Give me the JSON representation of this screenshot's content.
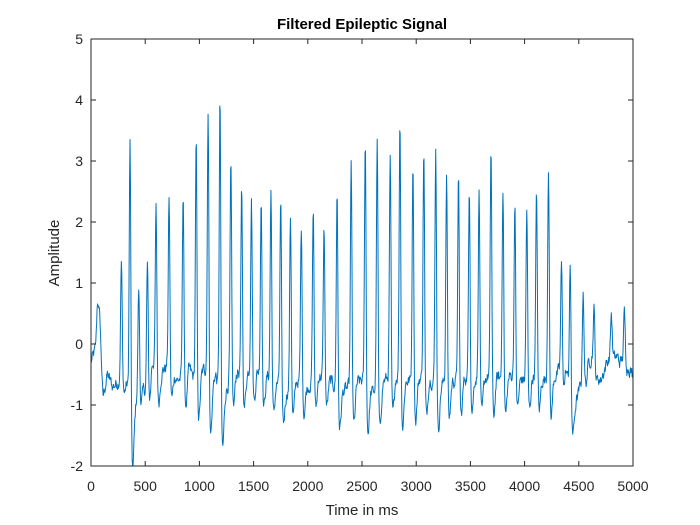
{
  "chart_data": {
    "type": "line",
    "title": "Filtered Epileptic Signal",
    "xlabel": "Time in ms",
    "ylabel": "Amplitude",
    "xlim": [
      0,
      5000
    ],
    "ylim": [
      -2,
      5
    ],
    "xticks": [
      0,
      500,
      1000,
      1500,
      2000,
      2500,
      3000,
      3500,
      4000,
      4500,
      5000
    ],
    "yticks": [
      -2,
      -1,
      0,
      1,
      2,
      3,
      4,
      5
    ],
    "grid": false,
    "legend": "none",
    "line_color": "#0072BD",
    "baseline": [
      [
        0,
        -0.3
      ],
      [
        40,
        -0.1
      ],
      [
        80,
        0.6
      ],
      [
        110,
        -0.9
      ],
      [
        150,
        -0.5
      ],
      [
        200,
        -0.7
      ],
      [
        260,
        -0.6
      ],
      [
        300,
        -0.4
      ],
      [
        350,
        -0.8
      ],
      [
        380,
        -1.35
      ],
      [
        420,
        -0.9
      ],
      [
        470,
        -0.6
      ],
      [
        520,
        -0.9
      ],
      [
        560,
        -0.2
      ],
      [
        620,
        -0.5
      ],
      [
        680,
        -0.4
      ],
      [
        720,
        -0.3
      ],
      [
        800,
        -0.6
      ],
      [
        860,
        -0.5
      ],
      [
        900,
        -0.4
      ],
      [
        960,
        -0.6
      ],
      [
        1000,
        -0.5
      ],
      [
        1060,
        -0.4
      ],
      [
        1100,
        -0.7
      ],
      [
        1150,
        -0.5
      ],
      [
        1200,
        -0.9
      ],
      [
        1260,
        -0.7
      ],
      [
        1300,
        -0.4
      ],
      [
        1400,
        -0.5
      ],
      [
        1500,
        -0.4
      ],
      [
        1600,
        -0.5
      ],
      [
        1700,
        -0.6
      ],
      [
        1800,
        -0.8
      ],
      [
        1900,
        -0.6
      ],
      [
        2000,
        -0.7
      ],
      [
        2100,
        -0.5
      ],
      [
        2200,
        -0.6
      ],
      [
        2300,
        -0.8
      ],
      [
        2400,
        -0.7
      ],
      [
        2500,
        -0.6
      ],
      [
        2600,
        -0.8
      ],
      [
        2700,
        -0.6
      ],
      [
        2800,
        -0.5
      ],
      [
        2900,
        -0.6
      ],
      [
        3000,
        -0.6
      ],
      [
        3100,
        -0.5
      ],
      [
        3200,
        -0.7
      ],
      [
        3300,
        -0.6
      ],
      [
        3400,
        -0.6
      ],
      [
        3500,
        -0.5
      ],
      [
        3600,
        -0.6
      ],
      [
        3700,
        -0.5
      ],
      [
        3800,
        -0.6
      ],
      [
        3900,
        -0.5
      ],
      [
        4000,
        -0.6
      ],
      [
        4100,
        -0.5
      ],
      [
        4200,
        -0.6
      ],
      [
        4300,
        -0.5
      ],
      [
        4380,
        -0.3
      ],
      [
        4420,
        -0.9
      ],
      [
        4450,
        -1.1
      ],
      [
        4500,
        -0.8
      ],
      [
        4560,
        -0.4
      ],
      [
        4620,
        -0.2
      ],
      [
        4700,
        -0.6
      ],
      [
        4760,
        -0.3
      ],
      [
        4820,
        -0.1
      ],
      [
        4880,
        -0.3
      ],
      [
        4940,
        -0.2
      ],
      [
        5000,
        -0.55
      ]
    ],
    "spikes": [
      [
        60,
        0.7
      ],
      [
        280,
        1.35
      ],
      [
        360,
        3.3
      ],
      [
        440,
        0.9
      ],
      [
        520,
        1.3
      ],
      [
        600,
        2.2
      ],
      [
        720,
        2.4
      ],
      [
        850,
        2.5
      ],
      [
        970,
        3.3
      ],
      [
        1080,
        3.8
      ],
      [
        1190,
        4.0
      ],
      [
        1290,
        2.9
      ],
      [
        1390,
        2.5
      ],
      [
        1480,
        2.4
      ],
      [
        1570,
        2.4
      ],
      [
        1660,
        2.5
      ],
      [
        1750,
        2.3
      ],
      [
        1840,
        2.1
      ],
      [
        1940,
        1.9
      ],
      [
        2050,
        2.2
      ],
      [
        2150,
        1.9
      ],
      [
        2270,
        2.5
      ],
      [
        2400,
        2.9
      ],
      [
        2530,
        3.35
      ],
      [
        2640,
        3.3
      ],
      [
        2760,
        3.0
      ],
      [
        2850,
        3.7
      ],
      [
        2970,
        3.0
      ],
      [
        3070,
        3.2
      ],
      [
        3180,
        3.2
      ],
      [
        3280,
        2.8
      ],
      [
        3390,
        2.7
      ],
      [
        3490,
        2.6
      ],
      [
        3580,
        2.5
      ],
      [
        3690,
        3.2
      ],
      [
        3800,
        2.6
      ],
      [
        3910,
        2.3
      ],
      [
        4020,
        2.2
      ],
      [
        4110,
        2.5
      ],
      [
        4220,
        2.95
      ],
      [
        4340,
        1.3
      ],
      [
        4420,
        1.3
      ],
      [
        4540,
        0.9
      ],
      [
        4640,
        0.6
      ],
      [
        4800,
        0.5
      ],
      [
        4920,
        0.5
      ]
    ]
  }
}
